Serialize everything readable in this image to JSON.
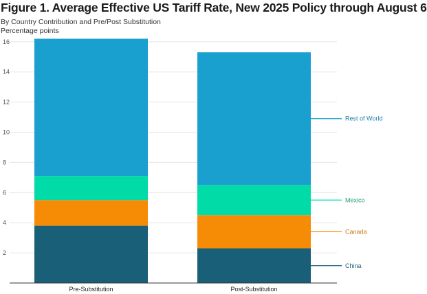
{
  "title": "Figure 1. Average Effective US Tariff Rate, New 2025 Policy through August 6",
  "subtitle": "By Country Contribution and Pre/Post Substitution",
  "unit_label": "Percentage points",
  "colors": {
    "China": "#1a5f78",
    "Canada": "#f68c06",
    "Mexico": "#00dba8",
    "Rest of World": "#1aa0cf",
    "china_label": "#1a5f78",
    "canada_label": "#c97a1a",
    "mexico_label": "#1f9e77",
    "row_label": "#1c7fa8"
  },
  "chart_data": {
    "type": "bar",
    "stacked": true,
    "categories": [
      "Pre-Substitution",
      "Post-Substitution"
    ],
    "series": [
      {
        "name": "China",
        "values": [
          3.8,
          2.3
        ]
      },
      {
        "name": "Canada",
        "values": [
          1.7,
          2.2
        ]
      },
      {
        "name": "Mexico",
        "values": [
          1.6,
          2.0
        ]
      },
      {
        "name": "Rest of World",
        "values": [
          9.1,
          8.8
        ]
      }
    ],
    "yticks": [
      2,
      4,
      6,
      8,
      10,
      12,
      14,
      16
    ],
    "ylim": [
      0,
      16.5
    ],
    "grid": true,
    "legend_placement": "right, direct labels"
  }
}
